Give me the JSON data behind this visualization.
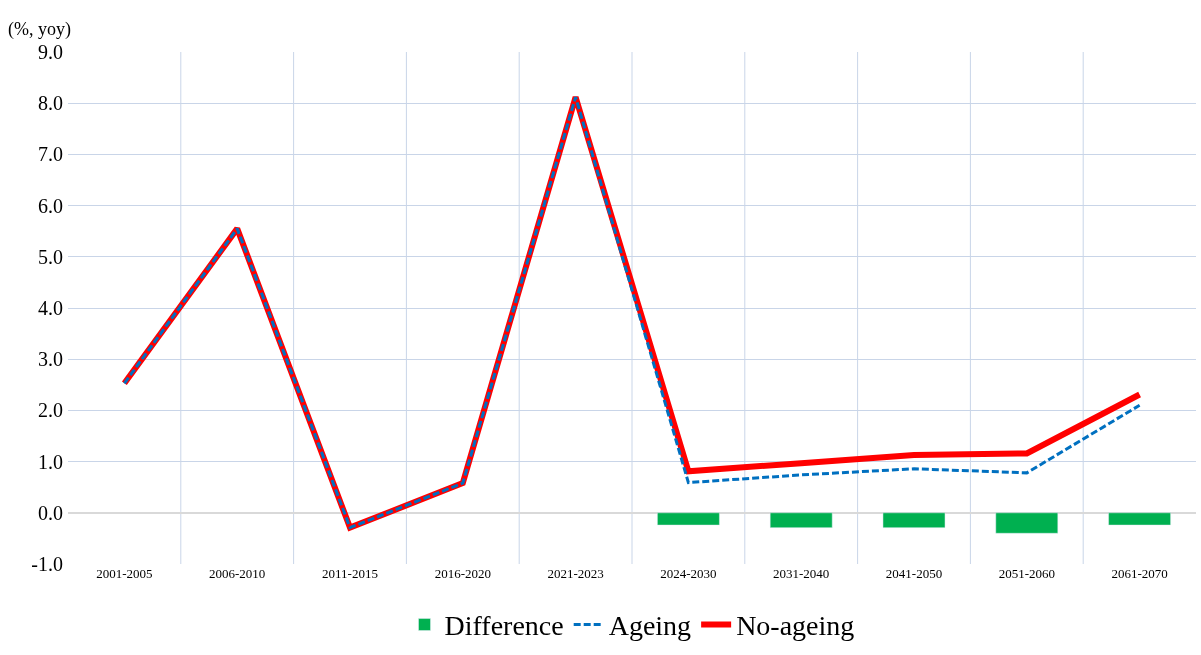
{
  "chart_data": {
    "type": "line",
    "categories": [
      "2001-2005",
      "2006-2010",
      "2011-2015",
      "2016-2020",
      "2021-2023",
      "2024-2030",
      "2031-2040",
      "2041-2050",
      "2051-2060",
      "2061-2070"
    ],
    "series": [
      {
        "name": "Difference",
        "type": "bar",
        "color": "#00b050",
        "values": [
          null,
          null,
          null,
          null,
          null,
          -0.24,
          -0.29,
          -0.29,
          -0.4,
          -0.24
        ]
      },
      {
        "name": "Ageing",
        "line_style": "dashed",
        "color": "#0070c0",
        "values": [
          2.53,
          5.55,
          -0.29,
          0.58,
          8.12,
          0.59,
          0.74,
          0.86,
          0.78,
          2.1
        ]
      },
      {
        "name": "No-ageing",
        "line_style": "solid",
        "color": "#ff0000",
        "values": [
          2.53,
          5.55,
          -0.29,
          0.58,
          8.12,
          0.81,
          0.97,
          1.13,
          1.16,
          2.31
        ]
      }
    ],
    "ylim": [
      -1.0,
      9.0
    ],
    "yticks": [
      {
        "value": -1,
        "label": "-1.0"
      },
      {
        "value": 0,
        "label": "0.0"
      },
      {
        "value": 1,
        "label": "1.0"
      },
      {
        "value": 2,
        "label": "2.0"
      },
      {
        "value": 3,
        "label": "3.0"
      },
      {
        "value": 4,
        "label": "4.0"
      },
      {
        "value": 5,
        "label": "5.0"
      },
      {
        "value": 6,
        "label": "6.0"
      },
      {
        "value": 7,
        "label": "7.0"
      },
      {
        "value": 8,
        "label": "8.0"
      },
      {
        "value": 9,
        "label": "9.0"
      }
    ],
    "annotations": [
      "(%, yoy)"
    ],
    "grid": true,
    "legend": "bottom",
    "marker": "none"
  }
}
